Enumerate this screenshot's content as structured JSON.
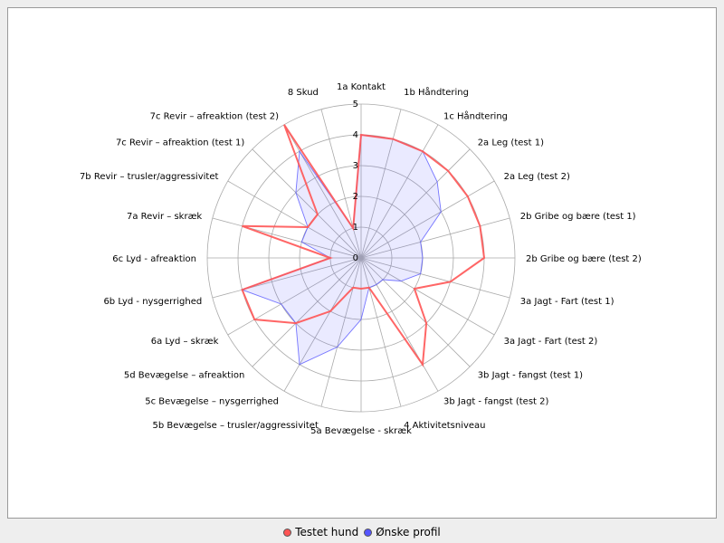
{
  "chart_data": {
    "type": "radar",
    "title": "",
    "max": 5,
    "ticks": [
      "0",
      "1",
      "2",
      "3",
      "4",
      "5"
    ],
    "categories": [
      "1a Kontakt",
      "1b Håndtering",
      "1c Håndtering",
      "2a Leg (test 1)",
      "2a Leg (test 2)",
      "2b Gribe og bære (test 1)",
      "2b Gribe og bære (test 2)",
      "3a Jagt - Fart (test 1)",
      "3a Jagt - Fart (test 2)",
      "3b Jagt - fangst (test 1)",
      "3b Jagt - fangst (test 2)",
      "4 Aktivitetsniveau",
      "5a Bevægelse - skræk",
      "5b Bevægelse – trusler/aggressivitet",
      "5c Bevægelse – nysgerrighed",
      "5d Bevægelse – afreaktion",
      "6a Lyd – skræk",
      "6b Lyd - nysgerrighed",
      "6c Lyd - afreaktion",
      "7a Revir – skræk",
      "7b Revir – trusler/aggressivitet",
      "7c Revir – afreaktion (test 1)",
      "7c Revir – afreaktion (test 2)",
      "8 Skud"
    ],
    "series": [
      {
        "name": "Testet hund",
        "color": "#ff5555",
        "values": [
          4,
          4,
          4,
          4,
          4,
          4,
          4,
          3,
          2,
          3,
          4,
          1,
          1,
          1,
          2,
          3,
          4,
          4,
          1,
          4,
          2,
          2,
          5,
          1
        ]
      },
      {
        "name": "Ønske profil",
        "color": "#5555ff",
        "values": [
          4,
          4,
          4,
          3.5,
          3,
          2,
          2,
          2,
          1.5,
          1,
          1,
          1,
          2,
          3,
          4,
          3,
          3,
          4,
          1,
          2,
          2,
          3,
          4,
          1
        ]
      }
    ],
    "legend_position": "bottom",
    "grid": true
  }
}
